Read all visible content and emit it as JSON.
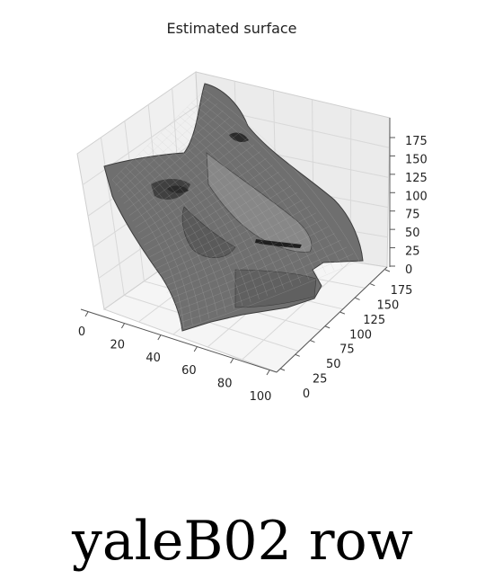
{
  "chart_data": {
    "type": "surface3d",
    "title": "Estimated surface",
    "xlabel": "",
    "ylabel": "",
    "zlabel": "",
    "x_ticks": [
      0,
      20,
      40,
      60,
      80,
      100
    ],
    "y_ticks": [
      0,
      25,
      50,
      75,
      100,
      125,
      150,
      175
    ],
    "z_ticks": [
      0,
      25,
      50,
      75,
      100,
      125,
      150,
      175
    ],
    "xlim": [
      0,
      100
    ],
    "ylim": [
      0,
      175
    ],
    "zlim": [
      0,
      175
    ],
    "grid": true,
    "colors": {
      "surface": "#6e6e6e",
      "edge": "#bdbdbd",
      "pane": "#f2f2f2",
      "grid": "#d8d8d8"
    }
  },
  "caption": "yaleB02 row"
}
